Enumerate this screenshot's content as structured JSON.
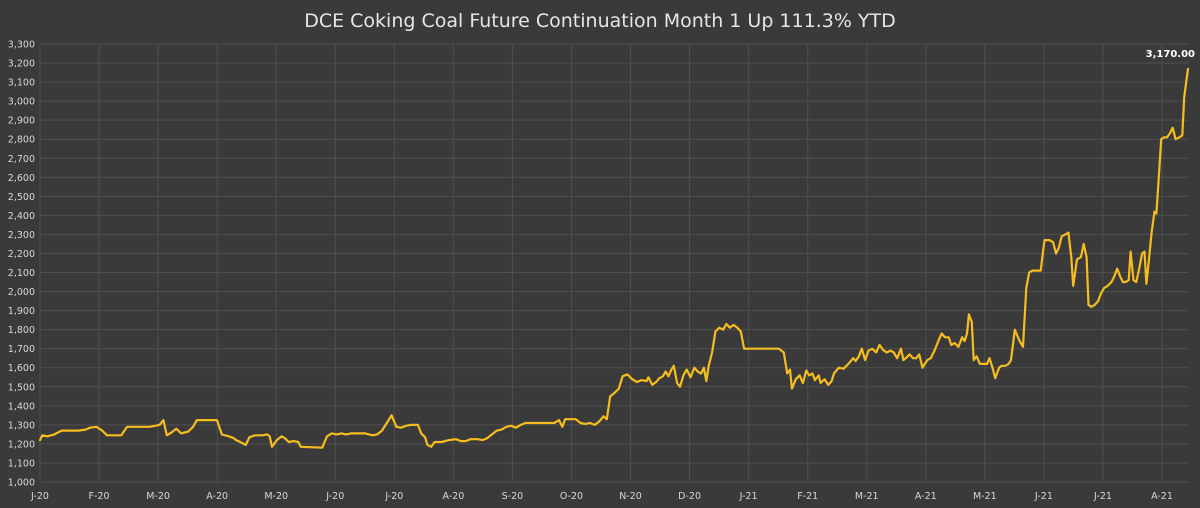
{
  "chart_data": {
    "type": "line",
    "title": "DCE Coking Coal Future Continuation Month 1 Up 111.3% YTD",
    "xlabel": "",
    "ylabel": "",
    "ylim": [
      1000,
      3300
    ],
    "ytick_step": 100,
    "y_tick_labels": [
      "1,000",
      "1,100",
      "1,200",
      "1,300",
      "1,400",
      "1,500",
      "1,600",
      "1,700",
      "1,800",
      "1,900",
      "2,000",
      "2,100",
      "2,200",
      "2,300",
      "2,400",
      "2,500",
      "2,600",
      "2,700",
      "2,800",
      "2,900",
      "3,000",
      "3,100",
      "3,200",
      "3,300"
    ],
    "x_tick_labels": [
      "J-20",
      "F-20",
      "M-20",
      "A-20",
      "M-20",
      "J-20",
      "J-20",
      "A-20",
      "S-20",
      "O-20",
      "N-20",
      "D-20",
      "J-21",
      "F-21",
      "M-21",
      "A-21",
      "M-21",
      "J-21",
      "J-21",
      "A-21"
    ],
    "x_index_range": [
      0,
      19.97
    ],
    "grid": true,
    "legend": "none",
    "line_color": "#f5bd1f",
    "last_value_label": "3,170.00",
    "series": [
      {
        "values": [
          [
            0.0,
            1220
          ],
          [
            0.05,
            1245
          ],
          [
            0.15,
            1240
          ],
          [
            0.3,
            1250
          ],
          [
            0.45,
            1270
          ],
          [
            0.8,
            1270
          ],
          [
            0.95,
            1275
          ],
          [
            1.05,
            1285
          ],
          [
            1.18,
            1290
          ],
          [
            1.3,
            1270
          ],
          [
            1.4,
            1245
          ],
          [
            1.7,
            1245
          ],
          [
            1.82,
            1290
          ],
          [
            2.05,
            1290
          ],
          [
            2.3,
            1290
          ],
          [
            2.5,
            1300
          ],
          [
            2.58,
            1325
          ],
          [
            2.65,
            1245
          ],
          [
            2.75,
            1260
          ],
          [
            2.85,
            1280
          ],
          [
            2.95,
            1255
          ],
          [
            3.1,
            1265
          ],
          [
            3.2,
            1290
          ],
          [
            3.28,
            1325
          ],
          [
            3.7,
            1325
          ],
          [
            3.8,
            1250
          ],
          [
            3.95,
            1240
          ],
          [
            4.05,
            1230
          ],
          [
            4.1,
            1220
          ],
          [
            4.15,
            1215
          ],
          [
            4.3,
            1195
          ],
          [
            4.38,
            1235
          ],
          [
            4.5,
            1245
          ],
          [
            4.65,
            1245
          ],
          [
            4.75,
            1250
          ],
          [
            4.8,
            1240
          ],
          [
            4.85,
            1185
          ],
          [
            4.95,
            1220
          ],
          [
            5.05,
            1240
          ],
          [
            5.12,
            1230
          ],
          [
            5.2,
            1210
          ],
          [
            5.3,
            1215
          ],
          [
            5.4,
            1210
          ],
          [
            5.45,
            1185
          ],
          [
            5.9,
            1180
          ],
          [
            6.0,
            1240
          ],
          [
            6.1,
            1255
          ],
          [
            6.2,
            1250
          ],
          [
            6.3,
            1255
          ],
          [
            6.4,
            1250
          ],
          [
            6.5,
            1255
          ],
          [
            6.8,
            1255
          ],
          [
            6.95,
            1245
          ],
          [
            7.05,
            1250
          ],
          [
            7.15,
            1270
          ],
          [
            7.25,
            1310
          ],
          [
            7.35,
            1350
          ],
          [
            7.45,
            1290
          ],
          [
            7.55,
            1285
          ],
          [
            7.65,
            1295
          ],
          [
            7.75,
            1300
          ],
          [
            7.9,
            1300
          ],
          [
            7.97,
            1255
          ],
          [
            8.05,
            1235
          ],
          [
            8.1,
            1195
          ],
          [
            8.18,
            1185
          ],
          [
            8.25,
            1210
          ],
          [
            8.4,
            1210
          ],
          [
            8.55,
            1220
          ],
          [
            8.7,
            1225
          ],
          [
            8.8,
            1215
          ],
          [
            8.9,
            1215
          ],
          [
            9.0,
            1225
          ],
          [
            9.15,
            1225
          ],
          [
            9.25,
            1220
          ],
          [
            9.35,
            1230
          ],
          [
            9.45,
            1250
          ],
          [
            9.55,
            1270
          ],
          [
            9.65,
            1275
          ],
          [
            9.75,
            1290
          ],
          [
            9.85,
            1295
          ],
          [
            9.95,
            1285
          ],
          [
            10.05,
            1300
          ],
          [
            10.15,
            1310
          ],
          [
            10.6,
            1310
          ],
          [
            10.75,
            1310
          ],
          [
            10.85,
            1325
          ],
          [
            10.92,
            1290
          ],
          [
            10.98,
            1330
          ],
          [
            11.2,
            1330
          ],
          [
            11.3,
            1310
          ],
          [
            11.4,
            1305
          ],
          [
            11.5,
            1310
          ],
          [
            11.6,
            1300
          ],
          [
            11.7,
            1320
          ],
          [
            11.78,
            1345
          ],
          [
            11.85,
            1330
          ],
          [
            11.92,
            1450
          ],
          [
            12.0,
            1465
          ],
          [
            12.1,
            1490
          ],
          [
            12.18,
            1555
          ],
          [
            12.28,
            1565
          ],
          [
            12.38,
            1540
          ],
          [
            12.48,
            1525
          ],
          [
            12.58,
            1535
          ],
          [
            12.68,
            1530
          ],
          [
            12.72,
            1550
          ],
          [
            12.8,
            1510
          ],
          [
            12.88,
            1525
          ],
          [
            12.95,
            1545
          ],
          [
            13.02,
            1555
          ],
          [
            13.08,
            1580
          ],
          [
            13.14,
            1555
          ],
          [
            13.2,
            1590
          ],
          [
            13.25,
            1610
          ],
          [
            13.32,
            1520
          ],
          [
            13.38,
            1500
          ],
          [
            13.45,
            1560
          ],
          [
            13.52,
            1590
          ],
          [
            13.6,
            1550
          ],
          [
            13.68,
            1600
          ],
          [
            13.75,
            1580
          ],
          [
            13.82,
            1570
          ],
          [
            13.88,
            1600
          ],
          [
            13.93,
            1530
          ],
          [
            13.98,
            1610
          ],
          [
            14.05,
            1680
          ],
          [
            14.12,
            1790
          ],
          [
            14.2,
            1810
          ],
          [
            14.28,
            1800
          ],
          [
            14.35,
            1830
          ],
          [
            14.42,
            1810
          ],
          [
            14.5,
            1825
          ],
          [
            14.58,
            1810
          ],
          [
            14.65,
            1790
          ],
          [
            14.72,
            1700
          ],
          [
            15.1,
            1700
          ],
          [
            15.45,
            1700
          ],
          [
            15.55,
            1680
          ],
          [
            15.62,
            1570
          ],
          [
            15.68,
            1590
          ],
          [
            15.72,
            1490
          ],
          [
            15.8,
            1540
          ],
          [
            15.88,
            1560
          ],
          [
            15.95,
            1520
          ],
          [
            16.02,
            1585
          ],
          [
            16.08,
            1560
          ],
          [
            16.15,
            1570
          ],
          [
            16.2,
            1535
          ],
          [
            16.28,
            1560
          ],
          [
            16.32,
            1520
          ],
          [
            16.4,
            1540
          ],
          [
            16.48,
            1510
          ],
          [
            16.55,
            1530
          ],
          [
            16.6,
            1570
          ],
          [
            16.7,
            1600
          ],
          [
            16.8,
            1595
          ],
          [
            16.9,
            1620
          ],
          [
            17.0,
            1650
          ],
          [
            17.05,
            1635
          ],
          [
            17.12,
            1660
          ],
          [
            17.18,
            1700
          ],
          [
            17.25,
            1640
          ],
          [
            17.32,
            1690
          ],
          [
            17.4,
            1700
          ],
          [
            17.48,
            1680
          ],
          [
            17.55,
            1720
          ],
          [
            17.62,
            1695
          ],
          [
            17.7,
            1680
          ],
          [
            17.78,
            1690
          ],
          [
            17.85,
            1680
          ],
          [
            17.92,
            1650
          ],
          [
            18.0,
            1700
          ],
          [
            18.05,
            1640
          ],
          [
            18.1,
            1650
          ],
          [
            18.18,
            1670
          ],
          [
            18.25,
            1650
          ],
          [
            18.32,
            1650
          ],
          [
            18.38,
            1670
          ],
          [
            18.45,
            1600
          ],
          [
            18.55,
            1640
          ],
          [
            18.62,
            1650
          ],
          [
            18.7,
            1690
          ],
          [
            18.78,
            1740
          ],
          [
            18.85,
            1780
          ],
          [
            18.92,
            1760
          ],
          [
            19.0,
            1760
          ],
          [
            19.05,
            1720
          ],
          [
            19.12,
            1730
          ],
          [
            19.2,
            1710
          ],
          [
            19.28,
            1760
          ],
          [
            19.33,
            1740
          ],
          [
            19.38,
            1780
          ],
          [
            19.42,
            1880
          ],
          [
            19.48,
            1840
          ],
          [
            19.52,
            1640
          ],
          [
            19.58,
            1660
          ],
          [
            19.65,
            1620
          ],
          [
            19.72,
            1620
          ],
          [
            19.8,
            1620
          ],
          [
            19.85,
            1650
          ],
          [
            19.92,
            1595
          ],
          [
            19.97,
            1545
          ],
          [
            20.05,
            1600
          ],
          [
            20.1,
            1610
          ],
          [
            20.18,
            1610
          ],
          [
            20.25,
            1620
          ],
          [
            20.3,
            1640
          ],
          [
            20.38,
            1800
          ],
          [
            20.48,
            1740
          ],
          [
            20.55,
            1710
          ],
          [
            20.62,
            2020
          ],
          [
            20.68,
            2100
          ],
          [
            20.75,
            2110
          ],
          [
            20.85,
            2110
          ],
          [
            20.92,
            2110
          ],
          [
            21.0,
            2270
          ],
          [
            21.1,
            2270
          ],
          [
            21.18,
            2260
          ],
          [
            21.24,
            2200
          ],
          [
            21.3,
            2230
          ],
          [
            21.36,
            2290
          ],
          [
            21.44,
            2300
          ],
          [
            21.5,
            2310
          ],
          [
            21.56,
            2180
          ],
          [
            21.6,
            2030
          ],
          [
            21.68,
            2170
          ],
          [
            21.76,
            2180
          ],
          [
            21.82,
            2250
          ],
          [
            21.88,
            2180
          ],
          [
            21.92,
            1930
          ],
          [
            21.98,
            1920
          ],
          [
            22.05,
            1930
          ],
          [
            22.12,
            1950
          ],
          [
            22.18,
            1990
          ],
          [
            22.25,
            2020
          ],
          [
            22.32,
            2030
          ],
          [
            22.4,
            2050
          ],
          [
            22.46,
            2080
          ],
          [
            22.52,
            2120
          ],
          [
            22.58,
            2080
          ],
          [
            22.64,
            2050
          ],
          [
            22.7,
            2050
          ],
          [
            22.76,
            2060
          ],
          [
            22.8,
            2210
          ],
          [
            22.86,
            2060
          ],
          [
            22.92,
            2050
          ],
          [
            22.98,
            2120
          ],
          [
            23.04,
            2200
          ],
          [
            23.09,
            2210
          ],
          [
            23.13,
            2040
          ],
          [
            23.18,
            2160
          ],
          [
            23.24,
            2310
          ],
          [
            23.3,
            2420
          ],
          [
            23.34,
            2410
          ],
          [
            23.38,
            2560
          ],
          [
            23.44,
            2800
          ],
          [
            23.5,
            2810
          ],
          [
            23.56,
            2810
          ],
          [
            23.62,
            2830
          ],
          [
            23.68,
            2860
          ],
          [
            23.74,
            2800
          ],
          [
            23.82,
            2810
          ],
          [
            23.88,
            2820
          ],
          [
            23.92,
            3020
          ],
          [
            24.0,
            3170
          ]
        ]
      }
    ]
  }
}
